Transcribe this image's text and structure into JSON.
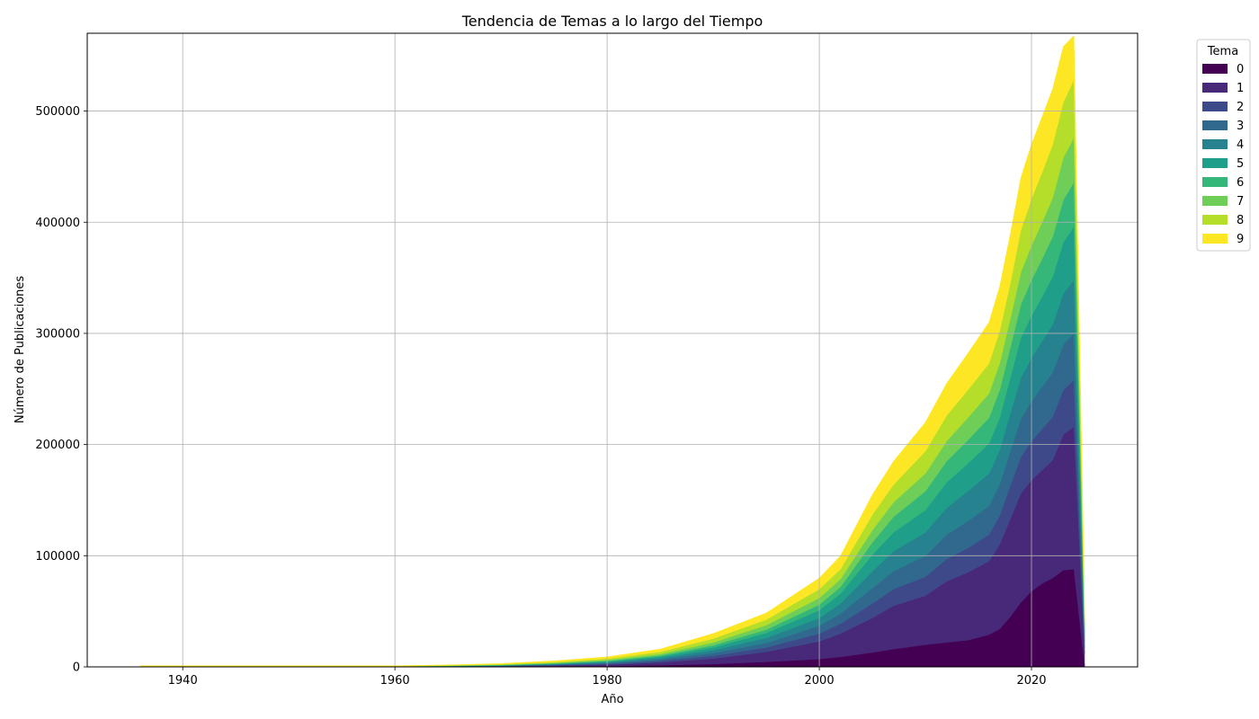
{
  "chart_data": {
    "type": "area",
    "stacked": true,
    "title": "Tendencia de Temas a lo largo del Tiempo",
    "xlabel": "Año",
    "ylabel": "Número de Publicaciones",
    "xlim": [
      1931,
      2030
    ],
    "ylim": [
      0,
      570000
    ],
    "xticks": [
      1940,
      1960,
      1980,
      2000,
      2020
    ],
    "yticks": [
      0,
      100000,
      200000,
      300000,
      400000,
      500000
    ],
    "grid": true,
    "legend": {
      "title": "Tema",
      "placement": "outside-top-right"
    },
    "x": [
      1936,
      1940,
      1950,
      1958,
      1960,
      1965,
      1970,
      1975,
      1980,
      1985,
      1990,
      1995,
      2000,
      2002,
      2005,
      2007,
      2010,
      2012,
      2014,
      2016,
      2017,
      2018,
      2019,
      2020,
      2021,
      2022,
      2023,
      2024,
      2025
    ],
    "series": [
      {
        "name": "0",
        "color": "#440154",
        "values": [
          100,
          100,
          100,
          100,
          100,
          200,
          300,
          500,
          800,
          1500,
          2500,
          4500,
          7000,
          9000,
          13000,
          16000,
          20000,
          22000,
          24000,
          29000,
          34000,
          45000,
          58000,
          68000,
          75000,
          80000,
          87000,
          88000,
          2000
        ]
      },
      {
        "name": "1",
        "color": "#482878",
        "values": [
          100,
          100,
          100,
          100,
          100,
          200,
          300,
          700,
          1200,
          2500,
          5000,
          9000,
          16000,
          21000,
          31000,
          39000,
          44000,
          55000,
          61000,
          66000,
          76000,
          88000,
          98000,
          100000,
          102000,
          106000,
          122000,
          128000,
          10000
        ]
      },
      {
        "name": "2",
        "color": "#3e4989",
        "values": [
          50,
          50,
          50,
          50,
          50,
          100,
          200,
          400,
          700,
          1300,
          2500,
          4000,
          7000,
          9000,
          13000,
          15000,
          17000,
          20000,
          22000,
          24000,
          26000,
          30000,
          33000,
          35000,
          37000,
          39000,
          40000,
          42000,
          5000
        ]
      },
      {
        "name": "3",
        "color": "#31688e",
        "values": [
          50,
          50,
          50,
          50,
          50,
          100,
          200,
          400,
          700,
          1300,
          2500,
          4000,
          7000,
          9000,
          14000,
          16000,
          19000,
          22000,
          24000,
          26000,
          28000,
          31000,
          34000,
          36000,
          38000,
          40000,
          41000,
          42000,
          5000
        ]
      },
      {
        "name": "4",
        "color": "#26828e",
        "values": [
          50,
          50,
          50,
          50,
          50,
          100,
          200,
          400,
          700,
          1300,
          2500,
          4500,
          7000,
          9000,
          15000,
          18000,
          21000,
          24000,
          27000,
          29000,
          31000,
          34000,
          37000,
          39000,
          41000,
          43000,
          46000,
          48000,
          5000
        ]
      },
      {
        "name": "5",
        "color": "#1f9e89",
        "values": [
          50,
          50,
          50,
          50,
          50,
          100,
          200,
          400,
          700,
          1300,
          2500,
          4500,
          7000,
          9000,
          15000,
          17000,
          20000,
          23000,
          25000,
          27000,
          29000,
          32000,
          36000,
          38000,
          40000,
          43000,
          46000,
          48000,
          5000
        ]
      },
      {
        "name": "6",
        "color": "#35b779",
        "values": [
          50,
          50,
          50,
          50,
          50,
          100,
          200,
          300,
          600,
          1000,
          2000,
          3000,
          5000,
          6000,
          11000,
          14000,
          17000,
          19000,
          21000,
          23000,
          25000,
          27000,
          30000,
          32000,
          34000,
          36000,
          38000,
          40000,
          4000
        ]
      },
      {
        "name": "7",
        "color": "#6ece58",
        "values": [
          100,
          100,
          100,
          100,
          100,
          200,
          300,
          500,
          800,
          1300,
          2500,
          4000,
          6000,
          7000,
          11000,
          13000,
          16000,
          18000,
          20000,
          22000,
          24000,
          26000,
          29000,
          31000,
          33000,
          35000,
          38000,
          40000,
          4000
        ]
      },
      {
        "name": "8",
        "color": "#b5de2b",
        "values": [
          200,
          200,
          200,
          200,
          200,
          300,
          500,
          800,
          1300,
          2000,
          3500,
          5000,
          8000,
          9000,
          14000,
          16000,
          20000,
          23000,
          25000,
          27000,
          29000,
          32000,
          38000,
          42000,
          45000,
          48000,
          50000,
          52000,
          5000
        ]
      },
      {
        "name": "9",
        "color": "#fde725",
        "values": [
          300,
          300,
          300,
          300,
          300,
          400,
          600,
          1000,
          1500,
          2500,
          4500,
          6000,
          10000,
          12000,
          18000,
          21000,
          26000,
          29000,
          33000,
          37000,
          40000,
          44000,
          47000,
          49000,
          50000,
          50000,
          50000,
          40000,
          15000
        ]
      }
    ]
  }
}
